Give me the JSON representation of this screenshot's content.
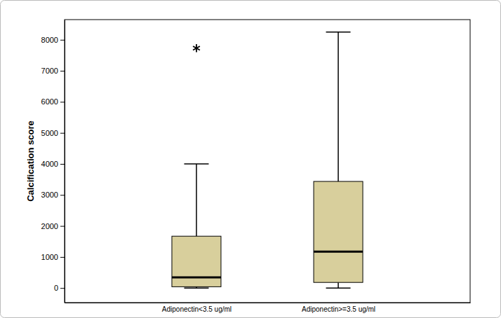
{
  "chart_data": {
    "type": "box",
    "y_label": "Calcification score",
    "categories": [
      "Adiponectin<3.5 ug/ml",
      "Adiponectin>=3.5 ug/ml"
    ],
    "min": [
      0,
      0
    ],
    "q1": [
      40,
      180
    ],
    "median": [
      340,
      1170
    ],
    "q3": [
      1670,
      3435
    ],
    "max": [
      4000,
      8250
    ],
    "outliers": [
      [
        7730
      ],
      []
    ],
    "color": "#d8cf9c",
    "marker": "asterisk",
    "ylim": [
      -470,
      8650
    ],
    "yticks": [
      0,
      1000,
      2000,
      3000,
      4000,
      5000,
      6000,
      7000,
      8000
    ],
    "grid": false
  }
}
